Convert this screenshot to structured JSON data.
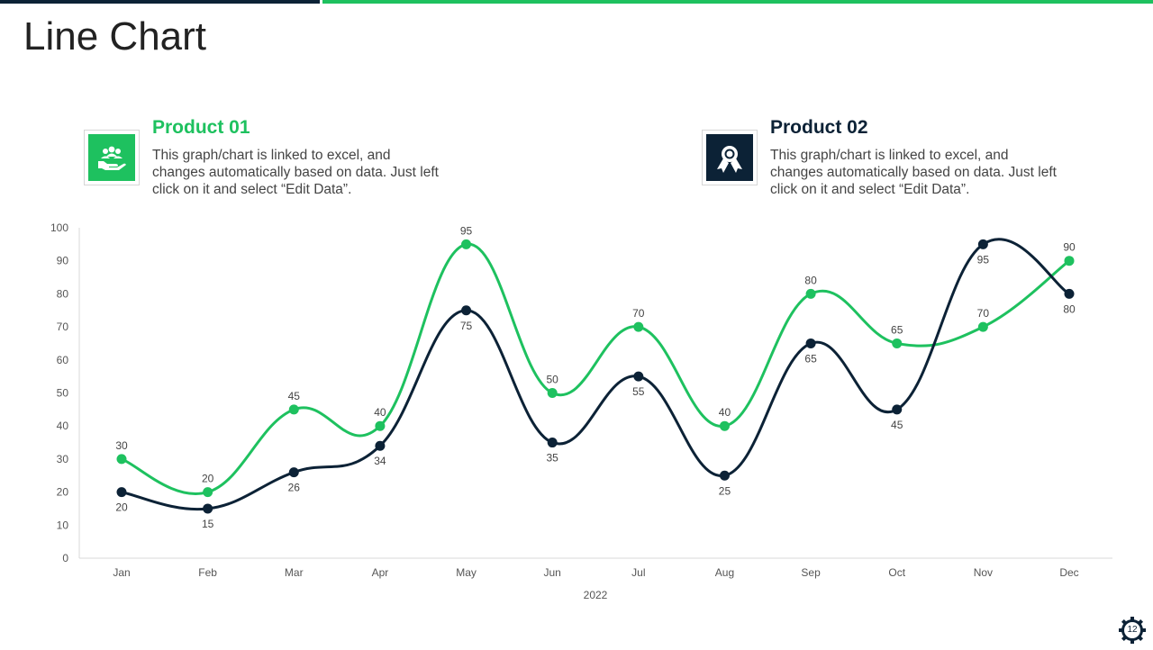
{
  "page": {
    "title": "Line Chart",
    "page_number": "12"
  },
  "legend": [
    {
      "title_prefix": "Product ",
      "title_num": "01",
      "description": "This graph/chart is linked to excel, and changes automatically based on data. Just left click on it and select “Edit Data”.",
      "icon": "hand-people-icon",
      "color": "#1ec15f"
    },
    {
      "title_prefix": "Product ",
      "title_num": "02",
      "description": "This graph/chart is linked to excel, and changes automatically based on data. Just left click on it and select “Edit Data”.",
      "icon": "award-ribbon-icon",
      "color": "#0c2236"
    }
  ],
  "chart_data": {
    "type": "line",
    "title": "",
    "xlabel": "2022",
    "ylabel": "",
    "ylim": [
      0,
      100
    ],
    "yticks": [
      0,
      10,
      20,
      30,
      40,
      50,
      60,
      70,
      80,
      90,
      100
    ],
    "categories": [
      "Jan",
      "Feb",
      "Mar",
      "Apr",
      "May",
      "Jun",
      "Jul",
      "Aug",
      "Sep",
      "Oct",
      "Nov",
      "Dec"
    ],
    "series": [
      {
        "name": "Product 01",
        "color": "#1ec15f",
        "values": [
          30,
          20,
          45,
          40,
          95,
          50,
          70,
          40,
          80,
          65,
          70,
          90
        ],
        "label_position": [
          "above",
          "above",
          "above",
          "above",
          "above",
          "above",
          "above",
          "above",
          "above",
          "above",
          "above",
          "above"
        ]
      },
      {
        "name": "Product 02",
        "color": "#0c2236",
        "values": [
          20,
          15,
          26,
          34,
          75,
          35,
          55,
          25,
          65,
          45,
          95,
          80
        ],
        "label_position": [
          "below",
          "below",
          "below",
          "below",
          "below",
          "below",
          "below",
          "below",
          "below",
          "below",
          "below",
          "below"
        ]
      }
    ],
    "grid": false,
    "legend_placement": "top"
  }
}
